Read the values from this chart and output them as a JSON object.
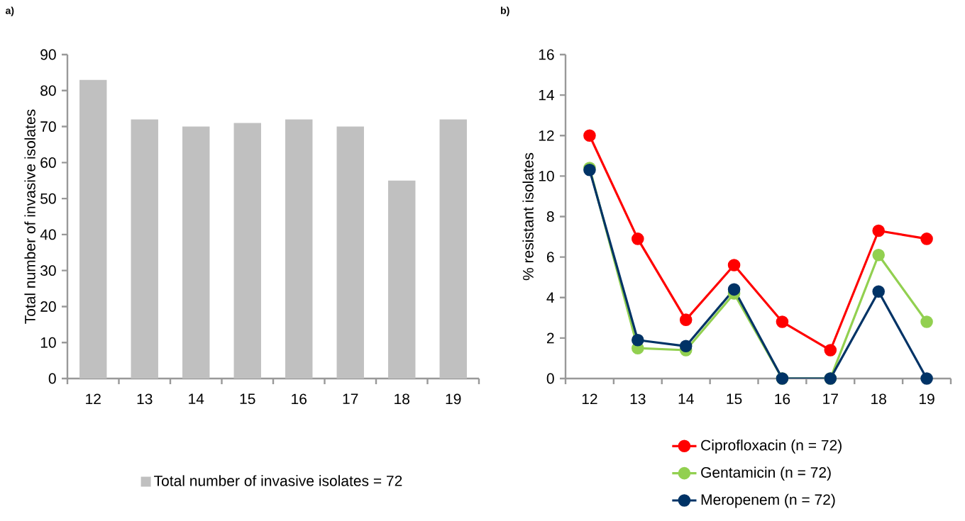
{
  "chart_data": [
    {
      "type": "bar",
      "title": "a)",
      "categories": [
        "12",
        "13",
        "14",
        "15",
        "16",
        "17",
        "18",
        "19"
      ],
      "ylabel": "Total number of invasive isolates",
      "ylim": [
        0,
        90
      ],
      "yticks": [
        0,
        10,
        20,
        30,
        40,
        50,
        60,
        70,
        80,
        90
      ],
      "legend": "bottom",
      "series": [
        {
          "name": "Total number of invasive isolates = 72",
          "color": "#c0c0c0",
          "values": [
            83,
            72,
            70,
            71,
            72,
            70,
            55,
            72
          ]
        }
      ]
    },
    {
      "type": "line",
      "title": "b)",
      "categories": [
        "12",
        "13",
        "14",
        "15",
        "16",
        "17",
        "18",
        "19"
      ],
      "ylabel": "% resistant isolates",
      "ylim": [
        0,
        16
      ],
      "yticks": [
        0,
        2,
        4,
        6,
        8,
        10,
        12,
        14,
        16
      ],
      "legend": "bottom",
      "marker": "circle",
      "line_style": "solid",
      "series": [
        {
          "name": "Ciprofloxacin (n = 72)",
          "color": "#ff0000",
          "values": [
            12.0,
            6.9,
            2.9,
            5.6,
            2.8,
            1.4,
            7.3,
            6.9
          ]
        },
        {
          "name": "Gentamicin (n = 72)",
          "color": "#92d050",
          "values": [
            10.4,
            1.5,
            1.4,
            4.2,
            0,
            0,
            6.1,
            2.8
          ]
        },
        {
          "name": "Meropenem (n = 72)",
          "color": "#003366",
          "values": [
            10.3,
            1.9,
            1.6,
            4.4,
            0,
            0,
            4.3,
            0
          ]
        }
      ]
    }
  ]
}
